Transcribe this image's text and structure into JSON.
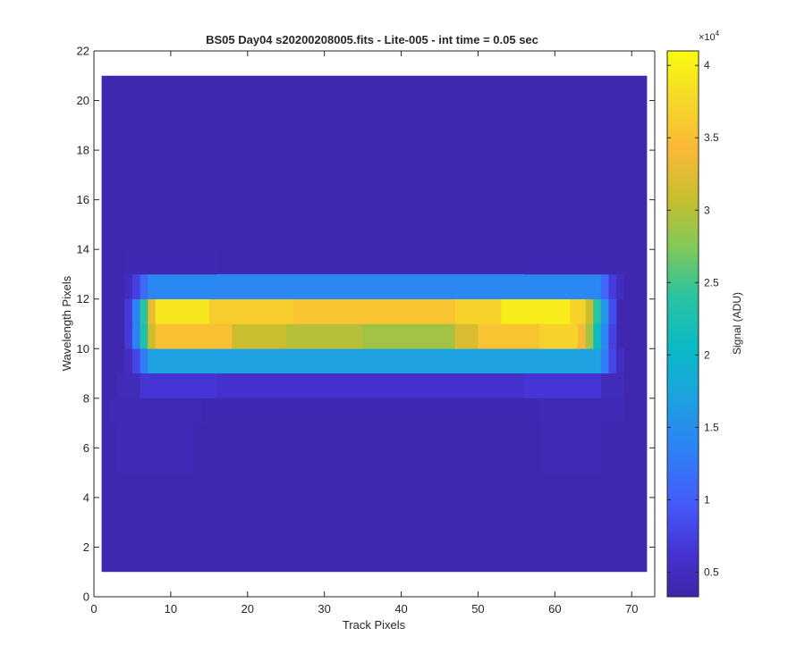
{
  "chart_data": {
    "type": "heatmap",
    "title": "BS05 Day04  s20200208005.fits - Lite-005 - int time = 0.05 sec",
    "xlabel": "Track Pixels",
    "ylabel": "Wavelength Pixels",
    "xlim": [
      0,
      73
    ],
    "ylim": [
      0,
      22
    ],
    "xticks": [
      0,
      10,
      20,
      30,
      40,
      50,
      60,
      70
    ],
    "yticks": [
      0,
      2,
      4,
      6,
      8,
      10,
      12,
      14,
      16,
      18,
      20,
      22
    ],
    "grid": false,
    "colormap": "parula",
    "colorbar": {
      "label": "Signal (ADU)",
      "exponent_label": "×10",
      "exponent": "4",
      "range": [
        3300,
        41000
      ],
      "ticks": [
        5000,
        10000,
        15000,
        20000,
        25000,
        30000,
        35000,
        40000
      ],
      "tick_labels": [
        "0.5",
        "1",
        "1.5",
        "2",
        "2.5",
        "3",
        "3.5",
        "4"
      ]
    },
    "data_extent": {
      "x": [
        1,
        72
      ],
      "y": [
        1,
        21
      ]
    },
    "background_value": 3800,
    "rows": [
      {
        "y": [
          9,
          10
        ],
        "segments": [
          {
            "x": [
              4,
              5
            ],
            "value": 5200
          },
          {
            "x": [
              5,
              6
            ],
            "value": 8000
          },
          {
            "x": [
              6,
              7
            ],
            "value": 13000
          },
          {
            "x": [
              7,
              66
            ],
            "value": 17000
          },
          {
            "x": [
              66,
              67
            ],
            "value": 13000
          },
          {
            "x": [
              67,
              68
            ],
            "value": 8000
          },
          {
            "x": [
              68,
              69
            ],
            "value": 5200
          }
        ]
      },
      {
        "y": [
          10,
          11
        ],
        "segments": [
          {
            "x": [
              4,
              5
            ],
            "value": 7000
          },
          {
            "x": [
              5,
              6
            ],
            "value": 13500
          },
          {
            "x": [
              6,
              7
            ],
            "value": 23000
          },
          {
            "x": [
              7,
              8
            ],
            "value": 31000
          },
          {
            "x": [
              8,
              18
            ],
            "value": 35000
          },
          {
            "x": [
              18,
              25
            ],
            "value": 31000
          },
          {
            "x": [
              25,
              35
            ],
            "value": 30000
          },
          {
            "x": [
              35,
              47
            ],
            "value": 29000
          },
          {
            "x": [
              47,
              50
            ],
            "value": 32000
          },
          {
            "x": [
              50,
              58
            ],
            "value": 35500
          },
          {
            "x": [
              58,
              63
            ],
            "value": 37000
          },
          {
            "x": [
              63,
              64
            ],
            "value": 34000
          },
          {
            "x": [
              64,
              65
            ],
            "value": 29000
          },
          {
            "x": [
              65,
              66
            ],
            "value": 21000
          },
          {
            "x": [
              66,
              67
            ],
            "value": 14000
          },
          {
            "x": [
              67,
              68
            ],
            "value": 7500
          }
        ]
      },
      {
        "y": [
          11,
          12
        ],
        "segments": [
          {
            "x": [
              4,
              5
            ],
            "value": 7000
          },
          {
            "x": [
              5,
              6
            ],
            "value": 13500
          },
          {
            "x": [
              6,
              7
            ],
            "value": 24000
          },
          {
            "x": [
              7,
              8
            ],
            "value": 33000
          },
          {
            "x": [
              8,
              15
            ],
            "value": 39000
          },
          {
            "x": [
              15,
              26
            ],
            "value": 36500
          },
          {
            "x": [
              26,
              47
            ],
            "value": 35500
          },
          {
            "x": [
              47,
              53
            ],
            "value": 37000
          },
          {
            "x": [
              53,
              62
            ],
            "value": 39500
          },
          {
            "x": [
              62,
              64
            ],
            "value": 37000
          },
          {
            "x": [
              64,
              65
            ],
            "value": 31000
          },
          {
            "x": [
              65,
              66
            ],
            "value": 24000
          },
          {
            "x": [
              66,
              67
            ],
            "value": 16000
          },
          {
            "x": [
              67,
              68
            ],
            "value": 8500
          }
        ]
      },
      {
        "y": [
          12,
          13
        ],
        "segments": [
          {
            "x": [
              4,
              5
            ],
            "value": 5000
          },
          {
            "x": [
              5,
              6
            ],
            "value": 7500
          },
          {
            "x": [
              6,
              7
            ],
            "value": 11000
          },
          {
            "x": [
              7,
              66
            ],
            "value": 14000
          },
          {
            "x": [
              66,
              67
            ],
            "value": 11000
          },
          {
            "x": [
              67,
              68
            ],
            "value": 7000
          },
          {
            "x": [
              68,
              69
            ],
            "value": 5000
          }
        ]
      },
      {
        "y": [
          8,
          9
        ],
        "segments": [
          {
            "x": [
              3,
              6
            ],
            "value": 4500
          },
          {
            "x": [
              6,
              16
            ],
            "value": 6600
          },
          {
            "x": [
              16,
              56
            ],
            "value": 6000
          },
          {
            "x": [
              56,
              66
            ],
            "value": 6600
          },
          {
            "x": [
              66,
              69
            ],
            "value": 4500
          }
        ]
      },
      {
        "y": [
          7,
          8
        ],
        "segments": [
          {
            "x": [
              2,
              14
            ],
            "value": 4300
          },
          {
            "x": [
              14,
              58
            ],
            "value": 4050
          },
          {
            "x": [
              58,
              69
            ],
            "value": 4300
          }
        ]
      },
      {
        "y": [
          5,
          7
        ],
        "segments": [
          {
            "x": [
              3,
              13
            ],
            "value": 4150
          },
          {
            "x": [
              58,
              66
            ],
            "value": 4150
          }
        ]
      },
      {
        "y": [
          13,
          14
        ],
        "segments": [
          {
            "x": [
              4,
              16
            ],
            "value": 4050
          },
          {
            "x": [
              56,
              67
            ],
            "value": 4050
          }
        ]
      }
    ]
  }
}
